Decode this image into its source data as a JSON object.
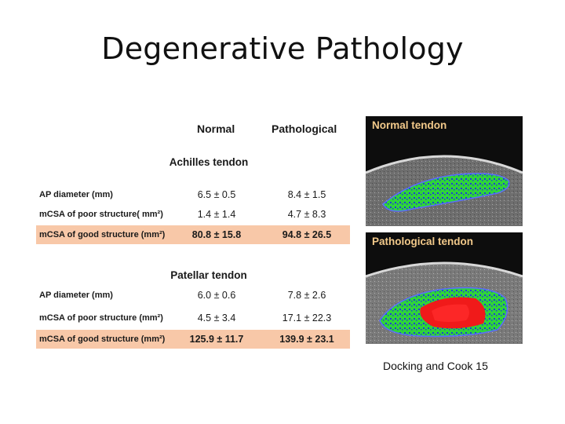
{
  "title": "Degenerative Pathology",
  "table": {
    "headers": {
      "normal": "Normal",
      "pathological": "Pathological"
    },
    "sections": [
      {
        "name": "Achilles tendon",
        "rows": [
          {
            "label": "AP diameter (mm)",
            "normal": "6.5 ± 0.5",
            "pathological": "8.4 ± 1.5",
            "highlight": false
          },
          {
            "label": "mCSA of poor structure( mm²)",
            "normal": "1.4 ± 1.4",
            "pathological": "4.7 ± 8.3",
            "highlight": false
          },
          {
            "label": "mCSA of good structure (mm²)",
            "normal": "80.8 ± 15.8",
            "pathological": "94.8 ± 26.5",
            "highlight": true
          }
        ]
      },
      {
        "name": "Patellar tendon",
        "rows": [
          {
            "label": "AP diameter (mm)",
            "normal": "6.0 ± 0.6",
            "pathological": "7.8 ± 2.6",
            "highlight": false
          },
          {
            "label": "mCSA of poor structure (mm²)",
            "normal": "4.5 ± 3.4",
            "pathological": "17.1 ± 22.3",
            "highlight": false
          },
          {
            "label": "mCSA of good structure (mm²)",
            "normal": "125.9 ± 11.7",
            "pathological": "139.9 ± 23.1",
            "highlight": true
          }
        ]
      }
    ],
    "highlight_color": "#f8c8a8"
  },
  "images": {
    "normal_caption": "Normal tendon",
    "pathological_caption": "Pathological tendon",
    "caption_color": "#f2c98a"
  },
  "citation": "Docking and Cook 15"
}
